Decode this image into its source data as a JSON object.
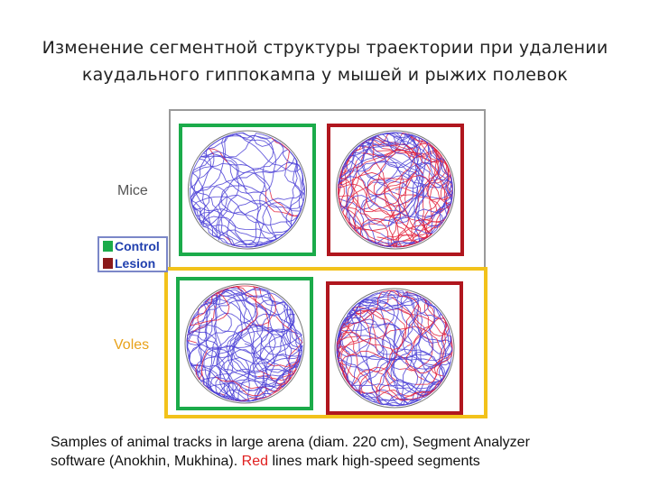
{
  "title": {
    "line1": "Изменение сегментной структуры траектории при удалении",
    "line2": "каудального гиппокампа у мышей и рыжих полевок"
  },
  "groups": {
    "mice": {
      "label": "Mice",
      "color": "#555555"
    },
    "voles": {
      "label": "Voles",
      "color": "#e8a21a"
    }
  },
  "legend": {
    "items": [
      {
        "label": "Control",
        "color": "#1bab4a"
      },
      {
        "label": "Lesion",
        "color": "#8b1a1a"
      }
    ]
  },
  "caption": {
    "line1": "Samples of animal tracks in large arena  (diam. 220 cm), Segment Analyzer",
    "line2_pre": "software  (Anokhin, Mukhina). ",
    "line2_red": "Red",
    "line2_post": " lines mark high-speed segments",
    "highlight_color": "#e02020"
  },
  "colors": {
    "control_frame": "#1bab4a",
    "lesion_frame": "#b0161e",
    "track_blue": "#4b3fd6",
    "track_red": "#e3203a"
  }
}
